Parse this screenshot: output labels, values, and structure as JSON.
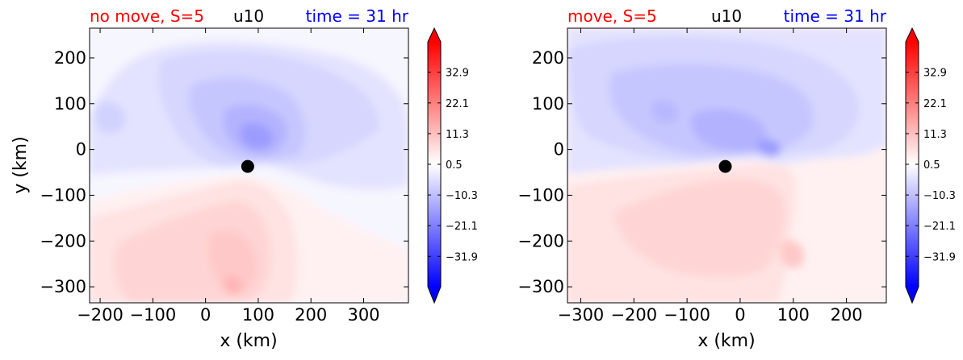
{
  "colors": {
    "left_title": "#ff0000",
    "mid_title": "#000000",
    "right_title": "#0000ff",
    "marker": "#000000"
  },
  "chart_data": [
    {
      "type": "heatmap",
      "title_left": "no move, S=5",
      "title_center": "u10",
      "title_right": "time = 31 hr",
      "xlabel": "x (km)",
      "ylabel": "y (km)",
      "xlim": [
        -220,
        385
      ],
      "ylim": [
        -335,
        265
      ],
      "xticks": [
        -200,
        -100,
        0,
        100,
        200,
        300
      ],
      "xtick_labels": [
        "−200",
        "−100",
        "0",
        "100",
        "200",
        "300"
      ],
      "yticks": [
        200,
        100,
        0,
        -100,
        -200,
        -300
      ],
      "ytick_labels": [
        "200",
        "100",
        "0",
        "−100",
        "−200",
        "−300"
      ],
      "marker": {
        "x": 80,
        "y": -37
      },
      "colorbar": {
        "min": -42.6,
        "max": 43.6,
        "tick_values": [
          32.9,
          22.1,
          11.3,
          0.5,
          -10.3,
          -21.1,
          -31.9
        ],
        "tick_labels": [
          "32.9",
          "22.1",
          "11.3",
          "0.5",
          "−10.3",
          "−21.1",
          "−31.9"
        ],
        "extend": "both"
      }
    },
    {
      "type": "heatmap",
      "title_left": "move, S=5",
      "title_center": "u10",
      "title_right": "time = 31 hr",
      "xlabel": "x (km)",
      "ylabel": "",
      "xlim": [
        -325,
        275
      ],
      "ylim": [
        -335,
        265
      ],
      "xticks": [
        -300,
        -200,
        -100,
        0,
        100,
        200
      ],
      "xtick_labels": [
        "−300",
        "−200",
        "−100",
        "0",
        "100",
        "200"
      ],
      "yticks": [
        200,
        100,
        0,
        -100,
        -200,
        -300
      ],
      "ytick_labels": [
        "200",
        "100",
        "0",
        "−100",
        "−200",
        "−300"
      ],
      "marker": {
        "x": -28,
        "y": -37
      },
      "colorbar": {
        "min": -42.6,
        "max": 43.6,
        "tick_values": [
          32.9,
          22.1,
          11.3,
          0.5,
          -10.3,
          -21.1,
          -31.9
        ],
        "tick_labels": [
          "32.9",
          "22.1",
          "11.3",
          "0.5",
          "−10.3",
          "−21.1",
          "−31.9"
        ],
        "extend": "both"
      }
    }
  ]
}
